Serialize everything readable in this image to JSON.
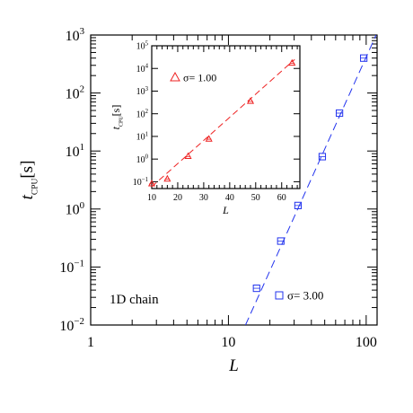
{
  "chart_data": [
    {
      "type": "scatter",
      "scale": {
        "x": "log",
        "y": "log"
      },
      "xlim": [
        1,
        120
      ],
      "ylim": [
        0.01,
        1000
      ],
      "xticks": [
        {
          "value": 1,
          "label": "1"
        },
        {
          "value": 10,
          "label": "10"
        },
        {
          "value": 100,
          "label": "100"
        }
      ],
      "yticks": [
        {
          "value": 0.01,
          "base": "10",
          "exp": "−2"
        },
        {
          "value": 0.1,
          "base": "10",
          "exp": "−1"
        },
        {
          "value": 1,
          "base": "10",
          "exp": "0"
        },
        {
          "value": 10,
          "base": "10",
          "exp": "1"
        },
        {
          "value": 100,
          "base": "10",
          "exp": "2"
        },
        {
          "value": 1000,
          "base": "10",
          "exp": "3"
        }
      ],
      "xlabel": "L",
      "ylabel": {
        "main": "t",
        "sub": "CPU",
        "unit": "[s]"
      },
      "annotation": "1D chain",
      "legend": {
        "marker": "square",
        "text": "σ=  3.00",
        "position": "bottom-right"
      },
      "color": "#2233ee",
      "series": [
        {
          "name": "σ=  3.00",
          "marker": "square",
          "x": [
            16,
            24,
            32,
            48,
            64,
            96
          ],
          "y": [
            0.043,
            0.28,
            1.15,
            8.0,
            45,
            400
          ]
        }
      ],
      "fit": {
        "style": "dashed",
        "x": [
          13.3,
          118
        ],
        "y": [
          0.01,
          1000
        ]
      }
    },
    {
      "type": "scatter",
      "scale": {
        "x": "linear",
        "y": "log"
      },
      "xlim": [
        10,
        67
      ],
      "ylim": [
        0.05,
        100000
      ],
      "xticks": [
        {
          "value": 10,
          "label": "10"
        },
        {
          "value": 20,
          "label": "20"
        },
        {
          "value": 30,
          "label": "30"
        },
        {
          "value": 40,
          "label": "40"
        },
        {
          "value": 50,
          "label": "50"
        },
        {
          "value": 60,
          "label": "60"
        }
      ],
      "yticks": [
        {
          "value": 0.1,
          "base": "10",
          "exp": "−1"
        },
        {
          "value": 1,
          "base": "10",
          "exp": "0"
        },
        {
          "value": 10,
          "base": "10",
          "exp": "1"
        },
        {
          "value": 100,
          "base": "10",
          "exp": "2"
        },
        {
          "value": 1000,
          "base": "10",
          "exp": "3"
        },
        {
          "value": 10000,
          "base": "10",
          "exp": "4"
        },
        {
          "value": 100000,
          "base": "10",
          "exp": "5"
        }
      ],
      "xlabel": "L",
      "ylabel": {
        "main": "t",
        "sub": "CPU",
        "unit": "[s]"
      },
      "legend": {
        "marker": "triangle",
        "text": "σ=  1.00",
        "position": "top-left"
      },
      "color": "#ee2222",
      "series": [
        {
          "name": "σ=  1.00",
          "marker": "triangle",
          "x": [
            10,
            16,
            24,
            32,
            48,
            64
          ],
          "y": [
            0.08,
            0.13,
            1.3,
            7.5,
            350,
            17000
          ]
        }
      ],
      "fit": {
        "style": "dashed",
        "x": [
          10,
          65
        ],
        "y": [
          0.06,
          25000
        ]
      }
    }
  ]
}
